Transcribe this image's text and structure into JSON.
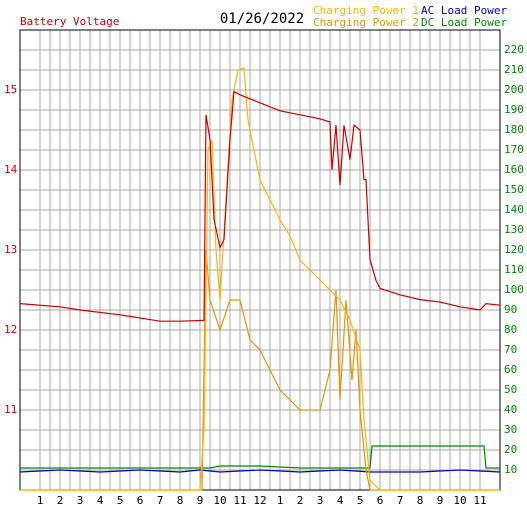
{
  "chart_data": {
    "type": "line",
    "title": "01/26/2022",
    "xlim": [
      0,
      24
    ],
    "xticks": [
      1,
      2,
      3,
      4,
      5,
      6,
      7,
      8,
      9,
      10,
      11,
      12,
      {
        "value": 13,
        "label": "1"
      },
      {
        "value": 14,
        "label": "2"
      },
      {
        "value": 15,
        "label": "3"
      },
      {
        "value": 16,
        "label": "4"
      },
      {
        "value": 17,
        "label": "5"
      },
      {
        "value": 18,
        "label": "6"
      },
      {
        "value": 19,
        "label": "7"
      },
      {
        "value": 20,
        "label": "8"
      },
      {
        "value": 21,
        "label": "9"
      },
      {
        "value": 22,
        "label": "10"
      },
      {
        "value": 23,
        "label": "11"
      }
    ],
    "ylim": [
      10,
      15.75
    ],
    "yticks": [
      11,
      12,
      13,
      14,
      15
    ],
    "y2lim": [
      0,
      230
    ],
    "y2ticks": [
      10,
      20,
      30,
      40,
      50,
      60,
      70,
      80,
      90,
      100,
      110,
      120,
      130,
      140,
      150,
      160,
      170,
      180,
      190,
      200,
      210,
      220
    ],
    "grid": true,
    "series": [
      {
        "name": "Battery Voltage",
        "color": "#cc0000",
        "axis": "y",
        "x": [
          0,
          2,
          3,
          5,
          7,
          8,
          9.2,
          9.3,
          9.5,
          9.7,
          10,
          10.2,
          10.5,
          10.7,
          11,
          12,
          13,
          14,
          15,
          15.5,
          15.6,
          15.8,
          16,
          16.2,
          16.5,
          16.7,
          17,
          17.2,
          17.3,
          17.5,
          17.8,
          18,
          19,
          20,
          21,
          22,
          23,
          23.3,
          24
        ],
        "values": [
          12.33,
          12.29,
          12.25,
          12.19,
          12.11,
          12.11,
          12.12,
          14.69,
          14.38,
          13.38,
          13.03,
          13.13,
          14.38,
          14.98,
          14.94,
          14.84,
          14.74,
          14.69,
          14.64,
          14.6,
          14.0,
          14.56,
          13.81,
          14.56,
          14.13,
          14.56,
          14.5,
          13.88,
          13.88,
          12.88,
          12.62,
          12.52,
          12.44,
          12.38,
          12.35,
          12.29,
          12.25,
          12.33,
          12.31
        ]
      },
      {
        "name": "Charging Power 1",
        "color": "#ffb400",
        "axis": "y2",
        "x": [
          0,
          9,
          9.2,
          9.4,
          9.6,
          9.8,
          10,
          10.3,
          10.6,
          10.9,
          11.2,
          11.4,
          11.7,
          12,
          12.5,
          13,
          13.5,
          14,
          14.5,
          15,
          15.5,
          16,
          16.5,
          17,
          17.2,
          17.5,
          18,
          24
        ],
        "values": [
          0,
          0,
          30,
          170,
          175,
          120,
          95,
          145,
          195,
          210,
          211,
          185,
          170,
          155,
          145,
          135,
          127,
          115,
          110,
          105,
          100,
          95,
          85,
          70,
          35,
          5,
          0,
          0
        ]
      },
      {
        "name": "Charging Power 2",
        "color": "#e69500",
        "axis": "y2",
        "x": [
          0,
          9.1,
          9.3,
          9.5,
          10,
          10.5,
          11,
          11.5,
          12,
          12.5,
          13,
          13.5,
          14,
          15,
          15.5,
          15.8,
          16,
          16.3,
          16.6,
          16.8,
          17,
          17.3,
          17.5,
          24
        ],
        "values": [
          0,
          0,
          120,
          95,
          80,
          95,
          95,
          75,
          70,
          60,
          50,
          45,
          40,
          40,
          60,
          100,
          45,
          95,
          55,
          80,
          40,
          10,
          0,
          0
        ]
      },
      {
        "name": "AC Load Power",
        "color": "#0000cc",
        "axis": "y2",
        "x": [
          0,
          2,
          4,
          6,
          8,
          9,
          10,
          12,
          14,
          16,
          17.5,
          18,
          20,
          22,
          24
        ],
        "values": [
          9,
          10,
          9,
          10,
          9,
          10,
          9,
          10,
          9,
          10,
          9,
          9,
          9,
          10,
          9
        ]
      },
      {
        "name": "DC Load Power",
        "color": "#008800",
        "axis": "y2",
        "x": [
          0,
          9,
          9.5,
          10,
          12,
          14,
          16,
          17.5,
          17.6,
          23.2,
          23.3,
          24
        ],
        "values": [
          11,
          11,
          11,
          12,
          12,
          11,
          11,
          11,
          22,
          22,
          11,
          11
        ]
      }
    ]
  }
}
